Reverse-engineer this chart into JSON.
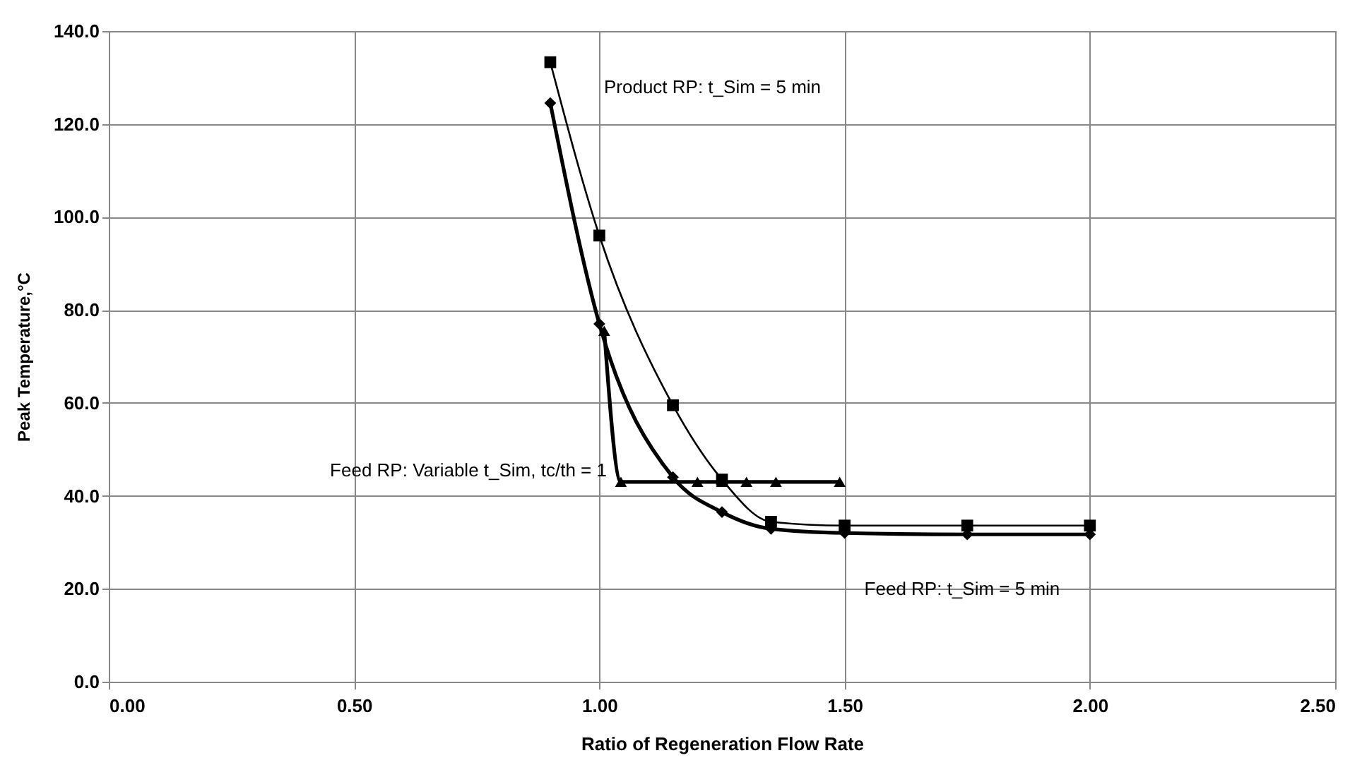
{
  "chart_data": {
    "type": "line",
    "xlabel": "Ratio of Regeneration Flow Rate",
    "ylabel": "Peak Temperature,°C",
    "xlim": [
      0,
      2.5
    ],
    "ylim": [
      0,
      140
    ],
    "xticks": [
      {
        "value": 0,
        "label": "0.00"
      },
      {
        "value": 0.5,
        "label": "0.50"
      },
      {
        "value": 1,
        "label": "1.00"
      },
      {
        "value": 1.5,
        "label": "1.50"
      },
      {
        "value": 2,
        "label": "2.00"
      },
      {
        "value": 2.5,
        "label": "2.50"
      }
    ],
    "yticks": [
      {
        "value": 0,
        "label": "0.0"
      },
      {
        "value": 20,
        "label": "20.0"
      },
      {
        "value": 40,
        "label": "40.0"
      },
      {
        "value": 60,
        "label": "60.0"
      },
      {
        "value": 80,
        "label": "80.0"
      },
      {
        "value": 100,
        "label": "100.0"
      },
      {
        "value": 120,
        "label": "120.0"
      },
      {
        "value": 140,
        "label": "140.0"
      }
    ],
    "grid": true,
    "series": [
      {
        "name": "Product RP: t_Sim = 5 min",
        "color": "#000000",
        "marker": "square",
        "x": [
          0.9,
          1.0,
          1.15,
          1.25,
          1.35,
          1.5,
          1.75,
          2.0
        ],
        "values": [
          133.3,
          96,
          59.5,
          43.5,
          34.4,
          33.6,
          33.6,
          33.6
        ]
      },
      {
        "name": "Feed RP: t_Sim = 5 min",
        "color": "#000000",
        "marker": "diamond",
        "x": [
          0.9,
          1.0,
          1.15,
          1.25,
          1.35,
          1.5,
          1.75,
          2.0
        ],
        "values": [
          124.5,
          77,
          44,
          36.5,
          32.9,
          32,
          31.7,
          31.7
        ]
      },
      {
        "name": "Feed RP: Variable t_Sim, tc/th = 1",
        "color": "#000000",
        "marker": "triangle",
        "x": [
          1.01,
          1.044,
          1.2,
          1.25,
          1.3,
          1.36,
          1.49
        ],
        "values": [
          75.5,
          43,
          43,
          43,
          43,
          43,
          43
        ]
      }
    ]
  }
}
